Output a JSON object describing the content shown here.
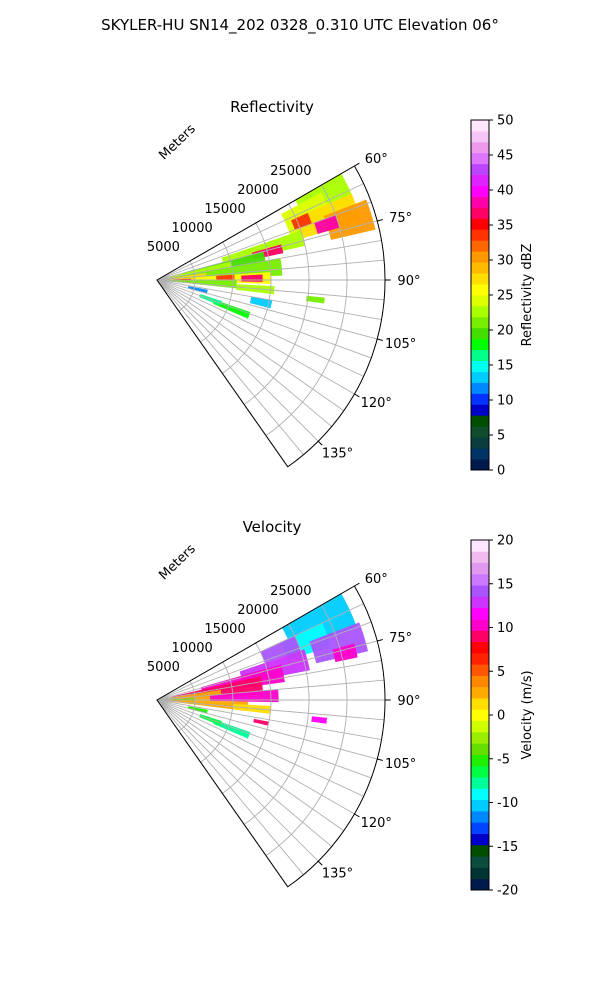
{
  "figure": {
    "suptitle": "SKYLER-HU  SN14_202  0328_0.310 UTC Elevation 06°"
  },
  "colors": {
    "reflectivity_scale": [
      "#001a4d",
      "#003366",
      "#0a3d3d",
      "#0f4d2e",
      "#004d00",
      "#0000c8",
      "#0033ff",
      "#0088ff",
      "#00ccff",
      "#00ffee",
      "#00ff88",
      "#00ff00",
      "#44dd00",
      "#77ee00",
      "#aaff00",
      "#ddff00",
      "#ffff00",
      "#ffdd00",
      "#ffbb00",
      "#ff9900",
      "#ff6600",
      "#ff3300",
      "#ff0000",
      "#ff0066",
      "#ff00aa",
      "#ff00ff",
      "#dd22ff",
      "#bb44ff",
      "#dd77ff",
      "#ee99ee",
      "#f5c6f5",
      "#ffe6ff"
    ],
    "velocity_scale": [
      "#001a4d",
      "#003333",
      "#0a4d3d",
      "#004d00",
      "#0000c8",
      "#0044ff",
      "#0088ff",
      "#00ccff",
      "#00ffff",
      "#00ff99",
      "#00ff44",
      "#22ee00",
      "#66dd00",
      "#99ee00",
      "#ccff00",
      "#ffff00",
      "#ffdd00",
      "#ffaa00",
      "#ff8800",
      "#ff5500",
      "#ff2200",
      "#ff0000",
      "#ff0066",
      "#ff00cc",
      "#ff00ff",
      "#cc33ff",
      "#aa55ff",
      "#cc77ff",
      "#e099ee",
      "#f0bbf0",
      "#ffe6ff"
    ]
  },
  "chart_data": [
    {
      "type": "heatmap",
      "panel": "reflectivity",
      "title": "Reflectivity",
      "radial_label": "Meters",
      "radial_ticks": [
        "5000",
        "10000",
        "15000",
        "20000",
        "25000"
      ],
      "radial_tick_values": [
        5000,
        10000,
        15000,
        20000,
        25000
      ],
      "r_max": 30000,
      "theta_range_deg": [
        60,
        145
      ],
      "theta_ticks": [
        "60°",
        "75°",
        "90°",
        "105°",
        "120°",
        "135°"
      ],
      "theta_tick_values": [
        60,
        75,
        90,
        105,
        120,
        135
      ],
      "grid": true,
      "colorbar": {
        "label": "Reflectivity dBZ",
        "range": [
          0,
          50
        ],
        "ticks": [
          "0",
          "5",
          "10",
          "15",
          "20",
          "25",
          "30",
          "35",
          "40",
          "45",
          "50"
        ],
        "tick_values": [
          0,
          5,
          10,
          15,
          20,
          25,
          30,
          35,
          40,
          45,
          50
        ]
      },
      "echoes": [
        {
          "az": 63,
          "r": 24500,
          "dr": 3500,
          "daz": 5,
          "v": 22
        },
        {
          "az": 67,
          "r": 21500,
          "dr": 3000,
          "daz": 5,
          "v": 24
        },
        {
          "az": 70,
          "r": 24000,
          "dr": 4000,
          "daz": 4,
          "v": 27
        },
        {
          "az": 73,
          "r": 26500,
          "dr": 3000,
          "daz": 4,
          "v": 30
        },
        {
          "az": 72,
          "r": 23500,
          "dr": 1500,
          "daz": 2,
          "v": 38
        },
        {
          "az": 68,
          "r": 20500,
          "dr": 1200,
          "daz": 2,
          "v": 34
        },
        {
          "az": 74,
          "r": 14500,
          "dr": 5500,
          "daz": 3,
          "v": 22
        },
        {
          "az": 76,
          "r": 15000,
          "dr": 2000,
          "daz": 2,
          "v": 36
        },
        {
          "az": 78,
          "r": 9000,
          "dr": 5500,
          "daz": 3,
          "v": 20
        },
        {
          "az": 80,
          "r": 5500,
          "dr": 4500,
          "daz": 4,
          "v": 22
        },
        {
          "az": 84,
          "r": 9500,
          "dr": 7000,
          "daz": 4,
          "v": 21
        },
        {
          "az": 86,
          "r": 3500,
          "dr": 3000,
          "daz": 4,
          "v": 27
        },
        {
          "az": 89,
          "r": 10000,
          "dr": 5000,
          "daz": 3,
          "v": 25
        },
        {
          "az": 89,
          "r": 12500,
          "dr": 1400,
          "daz": 2,
          "v": 37
        },
        {
          "az": 88,
          "r": 9000,
          "dr": 1200,
          "daz": 2,
          "v": 33
        },
        {
          "az": 91,
          "r": 2500,
          "dr": 2000,
          "daz": 3,
          "v": 35
        },
        {
          "az": 93,
          "r": 5500,
          "dr": 5000,
          "daz": 3,
          "v": 21
        },
        {
          "az": 95,
          "r": 13000,
          "dr": 2500,
          "daz": 2,
          "v": 22
        },
        {
          "az": 97,
          "r": 21000,
          "dr": 1200,
          "daz": 1,
          "v": 21
        },
        {
          "az": 103,
          "r": 5500,
          "dr": 1300,
          "daz": 2,
          "v": 12
        },
        {
          "az": 102,
          "r": 14000,
          "dr": 1400,
          "daz": 2,
          "v": 13
        },
        {
          "az": 111,
          "r": 10500,
          "dr": 2500,
          "daz": 2,
          "v": 18
        },
        {
          "az": 110,
          "r": 7500,
          "dr": 1500,
          "daz": 2,
          "v": 16
        }
      ]
    },
    {
      "type": "heatmap",
      "panel": "velocity",
      "title": "Velocity",
      "radial_label": "Meters",
      "radial_ticks": [
        "5000",
        "10000",
        "15000",
        "20000",
        "25000"
      ],
      "radial_tick_values": [
        5000,
        10000,
        15000,
        20000,
        25000
      ],
      "r_max": 30000,
      "theta_range_deg": [
        60,
        145
      ],
      "theta_ticks": [
        "60°",
        "75°",
        "90°",
        "105°",
        "120°",
        "135°"
      ],
      "theta_tick_values": [
        60,
        75,
        90,
        105,
        120,
        135
      ],
      "grid": true,
      "colorbar": {
        "label": "Velocity (m/s)",
        "range": [
          -20,
          20
        ],
        "ticks": [
          "-20",
          "-15",
          "-10",
          "-5",
          "0",
          "5",
          "10",
          "15",
          "20"
        ],
        "tick_values": [
          -20,
          -15,
          -10,
          -5,
          0,
          5,
          10,
          15,
          20
        ]
      },
      "echoes": [
        {
          "az": 64,
          "r": 23500,
          "dr": 4500,
          "daz": 6,
          "v": -10
        },
        {
          "az": 69,
          "r": 21000,
          "dr": 3000,
          "daz": 4,
          "v": -9
        },
        {
          "az": 68,
          "r": 17500,
          "dr": 2500,
          "daz": 3,
          "v": 14
        },
        {
          "az": 73,
          "r": 25000,
          "dr": 3500,
          "daz": 4,
          "v": 14
        },
        {
          "az": 76,
          "r": 25500,
          "dr": 1500,
          "daz": 2,
          "v": 10
        },
        {
          "az": 75,
          "r": 16000,
          "dr": 4500,
          "daz": 4,
          "v": 13
        },
        {
          "az": 78,
          "r": 11500,
          "dr": 5500,
          "daz": 4,
          "v": 10
        },
        {
          "az": 82,
          "r": 8000,
          "dr": 6000,
          "daz": 5,
          "v": 9
        },
        {
          "az": 86,
          "r": 4500,
          "dr": 4000,
          "daz": 5,
          "v": 3
        },
        {
          "az": 88,
          "r": 11500,
          "dr": 4500,
          "daz": 3,
          "v": 10
        },
        {
          "az": 91,
          "r": 2500,
          "dr": 2500,
          "daz": 4,
          "v": -4
        },
        {
          "az": 94,
          "r": 6500,
          "dr": 5500,
          "daz": 3,
          "v": 2
        },
        {
          "az": 95,
          "r": 12500,
          "dr": 2500,
          "daz": 2,
          "v": 1
        },
        {
          "az": 97,
          "r": 21500,
          "dr": 1000,
          "daz": 1,
          "v": 12
        },
        {
          "az": 103,
          "r": 5500,
          "dr": 1300,
          "daz": 2,
          "v": -5
        },
        {
          "az": 102,
          "r": 14000,
          "dr": 1000,
          "daz": 1,
          "v": 9
        },
        {
          "az": 111,
          "r": 10500,
          "dr": 2500,
          "daz": 2,
          "v": -8
        },
        {
          "az": 110,
          "r": 7500,
          "dr": 1500,
          "daz": 2,
          "v": -6
        }
      ]
    }
  ]
}
